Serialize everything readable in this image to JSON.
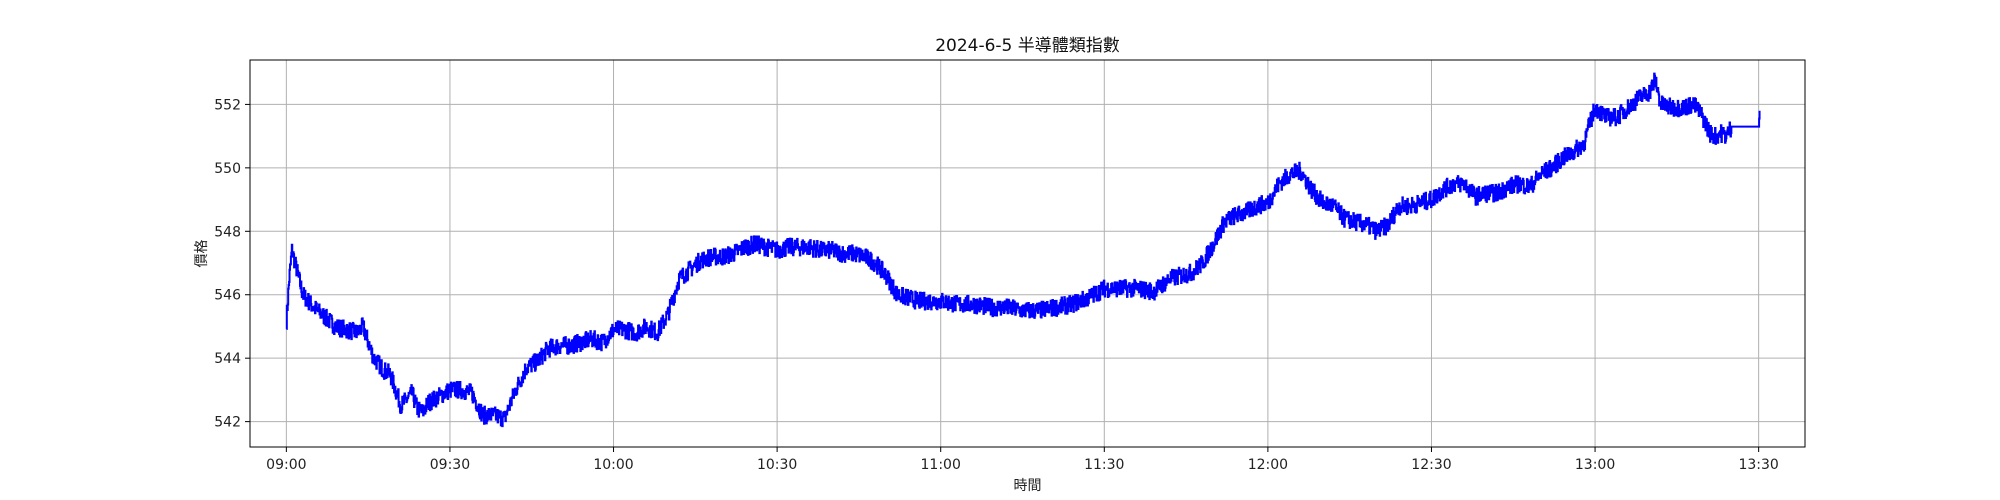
{
  "chart_data": {
    "type": "line",
    "title": "2024-6-5 半導體類指數",
    "xlabel": "時間",
    "ylabel": "價格",
    "x_ticks": [
      "09:00",
      "09:30",
      "10:00",
      "10:30",
      "11:00",
      "11:30",
      "12:00",
      "12:30",
      "13:00",
      "13:30"
    ],
    "y_ticks": [
      542,
      544,
      546,
      548,
      550,
      552
    ],
    "xlim": [
      "08:53:20",
      "13:38:30"
    ],
    "ylim": [
      541.2,
      553.4
    ],
    "grid": true,
    "legend": "none",
    "series": [
      {
        "color": "#0000ff",
        "points": [
          [
            "09:00",
            545.2
          ],
          [
            "09:00:30",
            546.5
          ],
          [
            "09:01",
            547.4
          ],
          [
            "09:02",
            546.7
          ],
          [
            "09:03",
            546.0
          ],
          [
            "09:04",
            545.8
          ],
          [
            "09:05",
            545.6
          ],
          [
            "09:07",
            545.3
          ],
          [
            "09:09",
            545.0
          ],
          [
            "09:11",
            544.9
          ],
          [
            "09:13",
            544.8
          ],
          [
            "09:14",
            545.0
          ],
          [
            "09:15",
            544.5
          ],
          [
            "09:16",
            544.0
          ],
          [
            "09:17",
            543.8
          ],
          [
            "09:18",
            543.6
          ],
          [
            "09:19",
            543.5
          ],
          [
            "09:20",
            543.0
          ],
          [
            "09:21",
            542.5
          ],
          [
            "09:22",
            542.7
          ],
          [
            "09:23",
            542.9
          ],
          [
            "09:24",
            542.4
          ],
          [
            "09:25",
            542.3
          ],
          [
            "09:26",
            542.6
          ],
          [
            "09:28",
            542.8
          ],
          [
            "09:30",
            543.0
          ],
          [
            "09:32",
            543.0
          ],
          [
            "09:34",
            542.9
          ],
          [
            "09:36",
            542.2
          ],
          [
            "09:38",
            542.2
          ],
          [
            "09:40",
            542.1
          ],
          [
            "09:42",
            543.0
          ],
          [
            "09:44",
            543.7
          ],
          [
            "09:46",
            543.9
          ],
          [
            "09:48",
            544.3
          ],
          [
            "09:50",
            544.4
          ],
          [
            "09:52",
            544.4
          ],
          [
            "09:54",
            544.5
          ],
          [
            "09:56",
            544.6
          ],
          [
            "09:58",
            544.5
          ],
          [
            "10:00",
            544.9
          ],
          [
            "10:02",
            544.9
          ],
          [
            "10:04",
            544.8
          ],
          [
            "10:06",
            545.0
          ],
          [
            "10:08",
            544.8
          ],
          [
            "10:10",
            545.4
          ],
          [
            "10:12",
            546.5
          ],
          [
            "10:14",
            546.8
          ],
          [
            "10:16",
            547.1
          ],
          [
            "10:18",
            547.2
          ],
          [
            "10:20",
            547.2
          ],
          [
            "10:22",
            547.3
          ],
          [
            "10:24",
            547.5
          ],
          [
            "10:26",
            547.6
          ],
          [
            "10:28",
            547.5
          ],
          [
            "10:30",
            547.4
          ],
          [
            "10:32",
            547.5
          ],
          [
            "10:34",
            547.5
          ],
          [
            "10:36",
            547.5
          ],
          [
            "10:38",
            547.4
          ],
          [
            "10:40",
            547.4
          ],
          [
            "10:42",
            547.3
          ],
          [
            "10:44",
            547.3
          ],
          [
            "10:46",
            547.2
          ],
          [
            "10:48",
            547.0
          ],
          [
            "10:50",
            546.6
          ],
          [
            "10:52",
            546.0
          ],
          [
            "10:54",
            545.9
          ],
          [
            "10:56",
            545.8
          ],
          [
            "10:58",
            545.8
          ],
          [
            "11:00",
            545.8
          ],
          [
            "11:03",
            545.7
          ],
          [
            "11:06",
            545.7
          ],
          [
            "11:09",
            545.6
          ],
          [
            "11:12",
            545.6
          ],
          [
            "11:15",
            545.5
          ],
          [
            "11:18",
            545.5
          ],
          [
            "11:21",
            545.6
          ],
          [
            "11:24",
            545.7
          ],
          [
            "11:27",
            545.9
          ],
          [
            "11:30",
            546.2
          ],
          [
            "11:33",
            546.2
          ],
          [
            "11:36",
            546.2
          ],
          [
            "11:39",
            546.1
          ],
          [
            "11:42",
            546.5
          ],
          [
            "11:44",
            546.6
          ],
          [
            "11:46",
            546.7
          ],
          [
            "11:48",
            547.0
          ],
          [
            "11:50",
            547.6
          ],
          [
            "11:52",
            548.3
          ],
          [
            "11:54",
            548.5
          ],
          [
            "11:56",
            548.6
          ],
          [
            "11:58",
            548.8
          ],
          [
            "12:00",
            548.9
          ],
          [
            "12:02",
            549.5
          ],
          [
            "12:04",
            549.8
          ],
          [
            "12:06",
            549.9
          ],
          [
            "12:08",
            549.3
          ],
          [
            "12:10",
            548.9
          ],
          [
            "12:12",
            548.8
          ],
          [
            "12:14",
            548.4
          ],
          [
            "12:16",
            548.3
          ],
          [
            "12:18",
            548.2
          ],
          [
            "12:20",
            548.0
          ],
          [
            "12:22",
            548.2
          ],
          [
            "12:24",
            548.8
          ],
          [
            "12:26",
            548.8
          ],
          [
            "12:28",
            548.9
          ],
          [
            "12:30",
            549.0
          ],
          [
            "12:32",
            549.3
          ],
          [
            "12:34",
            549.5
          ],
          [
            "12:36",
            549.5
          ],
          [
            "12:38",
            549.1
          ],
          [
            "12:40",
            549.2
          ],
          [
            "12:42",
            549.2
          ],
          [
            "12:44",
            549.4
          ],
          [
            "12:46",
            549.5
          ],
          [
            "12:48",
            549.4
          ],
          [
            "12:50",
            549.8
          ],
          [
            "12:52",
            550.0
          ],
          [
            "12:54",
            550.3
          ],
          [
            "12:56",
            550.5
          ],
          [
            "12:58",
            550.8
          ],
          [
            "12:59",
            551.4
          ],
          [
            "13:00",
            551.9
          ],
          [
            "13:02",
            551.6
          ],
          [
            "13:04",
            551.6
          ],
          [
            "13:06",
            551.9
          ],
          [
            "13:08",
            552.2
          ],
          [
            "13:10",
            552.4
          ],
          [
            "13:11",
            552.8
          ],
          [
            "13:12",
            552.0
          ],
          [
            "13:14",
            551.9
          ],
          [
            "13:16",
            551.9
          ],
          [
            "13:18",
            552.0
          ],
          [
            "13:19",
            551.8
          ],
          [
            "13:20",
            551.5
          ],
          [
            "13:21",
            551.1
          ],
          [
            "13:22",
            551.0
          ],
          [
            "13:23",
            551.1
          ],
          [
            "13:24",
            551.0
          ],
          [
            "13:25",
            551.3
          ],
          [
            "13:27",
            551.3
          ],
          [
            "13:29",
            551.3
          ],
          [
            "13:30",
            551.3
          ],
          [
            "13:30:10",
            551.8
          ]
        ]
      }
    ]
  }
}
